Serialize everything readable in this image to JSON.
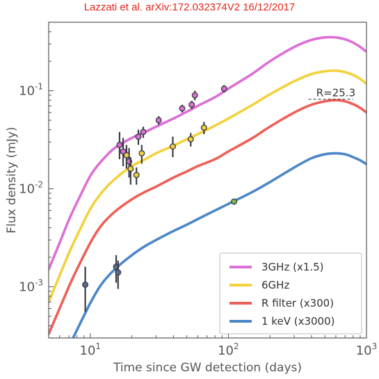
{
  "header": {
    "text": "Lazzati et al.  arXiv:172.032374V2  16/12/2017"
  },
  "colors": {
    "series_3ghz": "#dc6fd6",
    "series_6ghz": "#f3d13b",
    "series_rfilter": "#ee5f57",
    "series_1kev": "#4c86c8",
    "errorbar": "#3c3c46",
    "frame": "#555555"
  },
  "chart_data": {
    "type": "line",
    "title": "",
    "xlabel": "Time since GW detection (days)",
    "ylabel": "Flux density (mJy)",
    "xscale": "log",
    "yscale": "log",
    "xlim": [
      5,
      1000
    ],
    "ylim": [
      0.0003,
      0.5
    ],
    "grid": false,
    "legend_position": "bottom-right",
    "x_ticks": [
      {
        "value": 10,
        "base": "10",
        "exp": "1"
      },
      {
        "value": 100,
        "base": "10",
        "exp": "2"
      },
      {
        "value": 1000,
        "base": "10",
        "exp": "3"
      }
    ],
    "y_ticks": [
      {
        "value": 0.001,
        "base": "10",
        "exp": "-3"
      },
      {
        "value": 0.01,
        "base": "10",
        "exp": "-2"
      },
      {
        "value": 0.1,
        "base": "10",
        "exp": "-1"
      }
    ],
    "series": [
      {
        "name": "3GHz (x1.5)",
        "color": "#dc6fd6",
        "x": [
          5,
          6,
          7,
          8,
          10,
          12,
          15,
          20,
          25,
          30,
          40,
          50,
          60,
          80,
          100,
          150,
          200,
          300,
          400,
          500,
          600,
          700,
          800,
          900,
          1000
        ],
        "y": [
          0.0015,
          0.0028,
          0.0048,
          0.0072,
          0.0135,
          0.019,
          0.026,
          0.033,
          0.038,
          0.043,
          0.052,
          0.061,
          0.07,
          0.086,
          0.105,
          0.15,
          0.2,
          0.28,
          0.33,
          0.35,
          0.35,
          0.335,
          0.31,
          0.28,
          0.25
        ]
      },
      {
        "name": "6GHz",
        "color": "#f3d13b",
        "x": [
          5,
          6,
          7,
          8,
          10,
          12,
          15,
          20,
          25,
          30,
          40,
          50,
          60,
          80,
          100,
          150,
          200,
          300,
          400,
          500,
          600,
          700,
          800,
          900,
          1000
        ],
        "y": [
          0.0007,
          0.0013,
          0.0022,
          0.0033,
          0.0062,
          0.009,
          0.0125,
          0.017,
          0.02,
          0.023,
          0.0275,
          0.032,
          0.036,
          0.044,
          0.052,
          0.072,
          0.092,
          0.125,
          0.148,
          0.158,
          0.16,
          0.155,
          0.145,
          0.132,
          0.118
        ]
      },
      {
        "name": "R filter (x300)",
        "color": "#ee5f57",
        "x": [
          5,
          6,
          7,
          8,
          10,
          12,
          15,
          20,
          25,
          30,
          40,
          50,
          60,
          80,
          100,
          150,
          200,
          300,
          400,
          500,
          600,
          700,
          800,
          900,
          1000
        ],
        "y": [
          0.00033,
          0.0006,
          0.001,
          0.0015,
          0.0028,
          0.0042,
          0.0058,
          0.0078,
          0.0093,
          0.0105,
          0.013,
          0.015,
          0.017,
          0.02,
          0.024,
          0.033,
          0.043,
          0.06,
          0.072,
          0.078,
          0.08,
          0.078,
          0.073,
          0.067,
          0.06
        ]
      },
      {
        "name": "1 keV (x3000)",
        "color": "#4c86c8",
        "x": [
          7.5,
          8,
          10,
          12,
          15,
          20,
          25,
          30,
          40,
          50,
          60,
          80,
          100,
          150,
          200,
          300,
          400,
          500,
          600,
          700,
          800,
          900,
          1000
        ],
        "y": [
          0.0003,
          0.00036,
          0.00068,
          0.00105,
          0.0015,
          0.0021,
          0.0026,
          0.003,
          0.0037,
          0.0043,
          0.0049,
          0.006,
          0.007,
          0.0093,
          0.0117,
          0.0165,
          0.0205,
          0.0225,
          0.023,
          0.0225,
          0.021,
          0.0195,
          0.0178
        ]
      }
    ],
    "observations": [
      {
        "group": "3GHz",
        "color": "#dc6fd6",
        "points": [
          {
            "x": 16.3,
            "y": 0.028,
            "ylo": 0.02,
            "yhi": 0.038
          },
          {
            "x": 17.3,
            "y": 0.024,
            "ylo": 0.017,
            "yhi": 0.033
          },
          {
            "x": 19.1,
            "y": 0.019,
            "ylo": 0.013,
            "yhi": 0.026
          },
          {
            "x": 22.3,
            "y": 0.034,
            "ylo": 0.028,
            "yhi": 0.04
          },
          {
            "x": 24.2,
            "y": 0.038,
            "ylo": 0.033,
            "yhi": 0.043
          },
          {
            "x": 31.3,
            "y": 0.05,
            "ylo": 0.045,
            "yhi": 0.055
          },
          {
            "x": 46.3,
            "y": 0.066,
            "ylo": 0.06,
            "yhi": 0.072
          },
          {
            "x": 54.3,
            "y": 0.072,
            "ylo": 0.065,
            "yhi": 0.079
          },
          {
            "x": 57.2,
            "y": 0.09,
            "ylo": 0.08,
            "yhi": 0.1
          },
          {
            "x": 93.1,
            "y": 0.105,
            "ylo": 0.096,
            "yhi": 0.114
          }
        ]
      },
      {
        "group": "6GHz",
        "color": "#f3d13b",
        "points": [
          {
            "x": 18.3,
            "y": 0.022,
            "ylo": 0.016,
            "yhi": 0.028
          },
          {
            "x": 19.6,
            "y": 0.016,
            "ylo": 0.011,
            "yhi": 0.021
          },
          {
            "x": 21.6,
            "y": 0.0138,
            "ylo": 0.011,
            "yhi": 0.0165
          },
          {
            "x": 23.6,
            "y": 0.023,
            "ylo": 0.018,
            "yhi": 0.028
          },
          {
            "x": 39.6,
            "y": 0.027,
            "ylo": 0.021,
            "yhi": 0.034
          },
          {
            "x": 53.4,
            "y": 0.032,
            "ylo": 0.027,
            "yhi": 0.037
          },
          {
            "x": 66.6,
            "y": 0.042,
            "ylo": 0.036,
            "yhi": 0.048
          }
        ]
      },
      {
        "group": "R filter",
        "color": "#7fbf4a",
        "points": [
          {
            "x": 110,
            "y": 0.0074,
            "ylo": 0.0069,
            "yhi": 0.0079
          }
        ]
      },
      {
        "group": "1 keV",
        "color": "#5a6e8c",
        "points": [
          {
            "x": 9.2,
            "y": 0.00105,
            "ylo": 0.00055,
            "yhi": 0.0016
          },
          {
            "x": 15.4,
            "y": 0.0016,
            "ylo": 0.0011,
            "yhi": 0.0021
          },
          {
            "x": 15.9,
            "y": 0.0014,
            "ylo": 0.00095,
            "yhi": 0.00185
          }
        ]
      }
    ],
    "annotation": {
      "text": "R=25.3",
      "x": 600,
      "y": 0.082,
      "line_x": [
        380,
        800
      ]
    }
  }
}
